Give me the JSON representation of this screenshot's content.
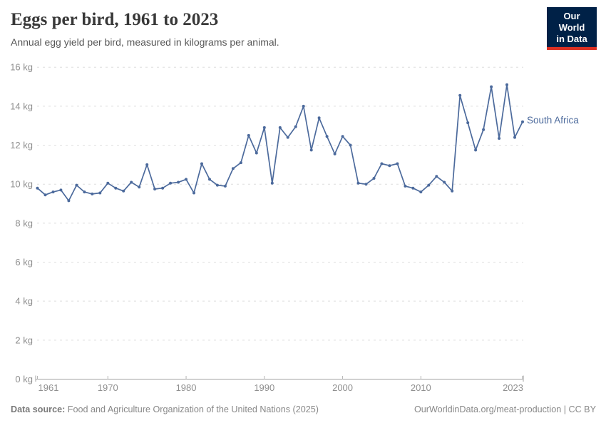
{
  "header": {
    "title": "Eggs per bird, 1961 to 2023",
    "subtitle": "Annual egg yield per bird, measured in kilograms per animal.",
    "logo": {
      "line1": "Our World",
      "line2": "in Data",
      "bg_color": "#002147",
      "bar_color": "#dc3022"
    }
  },
  "chart_data": {
    "type": "line",
    "title": "Eggs per bird, 1961 to 2023",
    "xlabel": "",
    "ylabel": "kg",
    "xlim": [
      1961,
      2023
    ],
    "ylim": [
      0,
      16
    ],
    "grid": "horizontal-dashed",
    "legend_position": "end-of-line-label",
    "x_ticks": [
      1961,
      1970,
      1980,
      1990,
      2000,
      2010,
      2023
    ],
    "y_ticks": [
      {
        "value": 0,
        "label": "0 kg"
      },
      {
        "value": 2,
        "label": "2 kg"
      },
      {
        "value": 4,
        "label": "4 kg"
      },
      {
        "value": 6,
        "label": "6 kg"
      },
      {
        "value": 8,
        "label": "8 kg"
      },
      {
        "value": 10,
        "label": "10 kg"
      },
      {
        "value": 12,
        "label": "12 kg"
      },
      {
        "value": 14,
        "label": "14 kg"
      },
      {
        "value": 16,
        "label": "16 kg"
      }
    ],
    "series": [
      {
        "name": "South Africa",
        "color": "#4C6A9C",
        "x": [
          1961,
          1962,
          1963,
          1964,
          1965,
          1966,
          1967,
          1968,
          1969,
          1970,
          1971,
          1972,
          1973,
          1974,
          1975,
          1976,
          1977,
          1978,
          1979,
          1980,
          1981,
          1982,
          1983,
          1984,
          1985,
          1986,
          1987,
          1988,
          1989,
          1990,
          1991,
          1992,
          1993,
          1994,
          1995,
          1996,
          1997,
          1998,
          1999,
          2000,
          2001,
          2002,
          2003,
          2004,
          2005,
          2006,
          2007,
          2008,
          2009,
          2010,
          2011,
          2012,
          2013,
          2014,
          2015,
          2016,
          2017,
          2018,
          2019,
          2020,
          2021,
          2022,
          2023
        ],
        "values": [
          9.8,
          9.45,
          9.6,
          9.7,
          9.15,
          9.95,
          9.6,
          9.5,
          9.55,
          10.05,
          9.8,
          9.65,
          10.1,
          9.85,
          11.0,
          9.75,
          9.8,
          10.05,
          10.1,
          10.25,
          9.55,
          11.05,
          10.25,
          9.95,
          9.9,
          10.8,
          11.1,
          12.5,
          11.6,
          12.9,
          10.05,
          12.9,
          12.4,
          12.95,
          14.0,
          11.75,
          13.4,
          12.45,
          11.55,
          12.45,
          12.0,
          10.05,
          10.0,
          10.3,
          11.05,
          10.95,
          11.05,
          9.9,
          9.8,
          9.6,
          9.95,
          10.4,
          10.1,
          9.65,
          14.55,
          13.15,
          11.75,
          12.8,
          15.0,
          12.35,
          15.1,
          12.4,
          13.2
        ]
      }
    ]
  },
  "footer": {
    "source_label": "Data source:",
    "source_text": "Food and Agriculture Organization of the United Nations (2025)",
    "credit": "OurWorldinData.org/meat-production | CC BY"
  }
}
